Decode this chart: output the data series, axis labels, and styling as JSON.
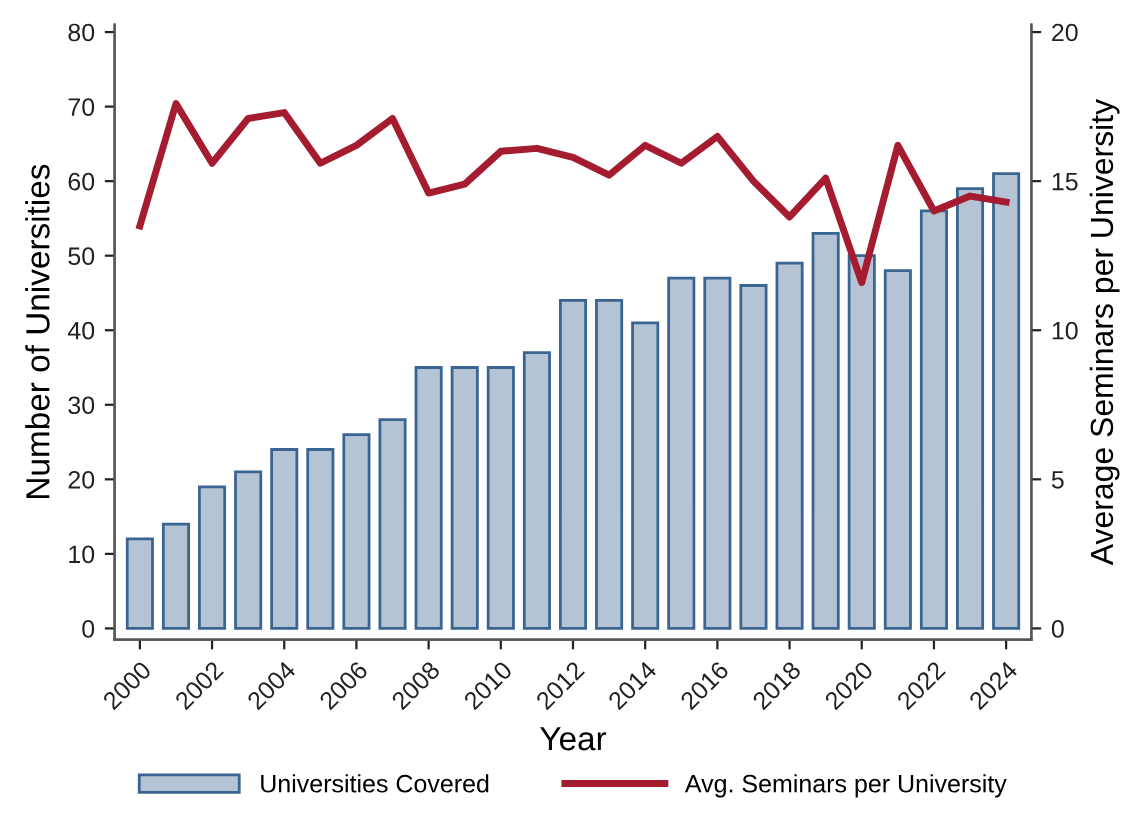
{
  "chart_data": {
    "type": "bar",
    "xlabel": "Year",
    "ylabel": "Number of Universities",
    "y2label": "Average Seminars per University",
    "x": [
      2000,
      2001,
      2002,
      2003,
      2004,
      2005,
      2006,
      2007,
      2008,
      2009,
      2010,
      2011,
      2012,
      2013,
      2014,
      2015,
      2016,
      2017,
      2018,
      2019,
      2020,
      2021,
      2022,
      2023,
      2024
    ],
    "series": [
      {
        "name": "Universities Covered",
        "color": "#b4c4d4",
        "values": [
          12,
          14,
          19,
          21,
          24,
          24,
          26,
          28,
          35,
          35,
          35,
          37,
          44,
          44,
          41,
          47,
          47,
          46,
          49,
          53,
          50,
          48,
          56,
          59,
          61
        ]
      },
      {
        "name": "Avg. Seminars per University",
        "type": "line",
        "axis": "y2",
        "color": "#a51c30",
        "values": [
          13.5,
          17.6,
          15.6,
          17.1,
          17.3,
          15.6,
          16.2,
          17.1,
          14.6,
          14.9,
          16.0,
          16.1,
          15.8,
          15.2,
          16.2,
          15.6,
          16.5,
          15.0,
          13.8,
          15.1,
          11.6,
          16.2,
          14.0,
          14.5,
          14.3
        ]
      }
    ],
    "xlim": [
      1999.3,
      2024.7
    ],
    "xticks": [
      2000,
      2002,
      2004,
      2006,
      2008,
      2010,
      2012,
      2014,
      2016,
      2018,
      2020,
      2022,
      2024
    ],
    "ylim": [
      -1.5,
      81
    ],
    "yticks": [
      0,
      10,
      20,
      30,
      40,
      50,
      60,
      70,
      80
    ],
    "y2lim": [
      -0.375,
      20.25
    ],
    "y2ticks": [
      0,
      5,
      10,
      15,
      20
    ],
    "grid": false,
    "legend": "bottom",
    "marker": "none",
    "line_style": "solid"
  }
}
